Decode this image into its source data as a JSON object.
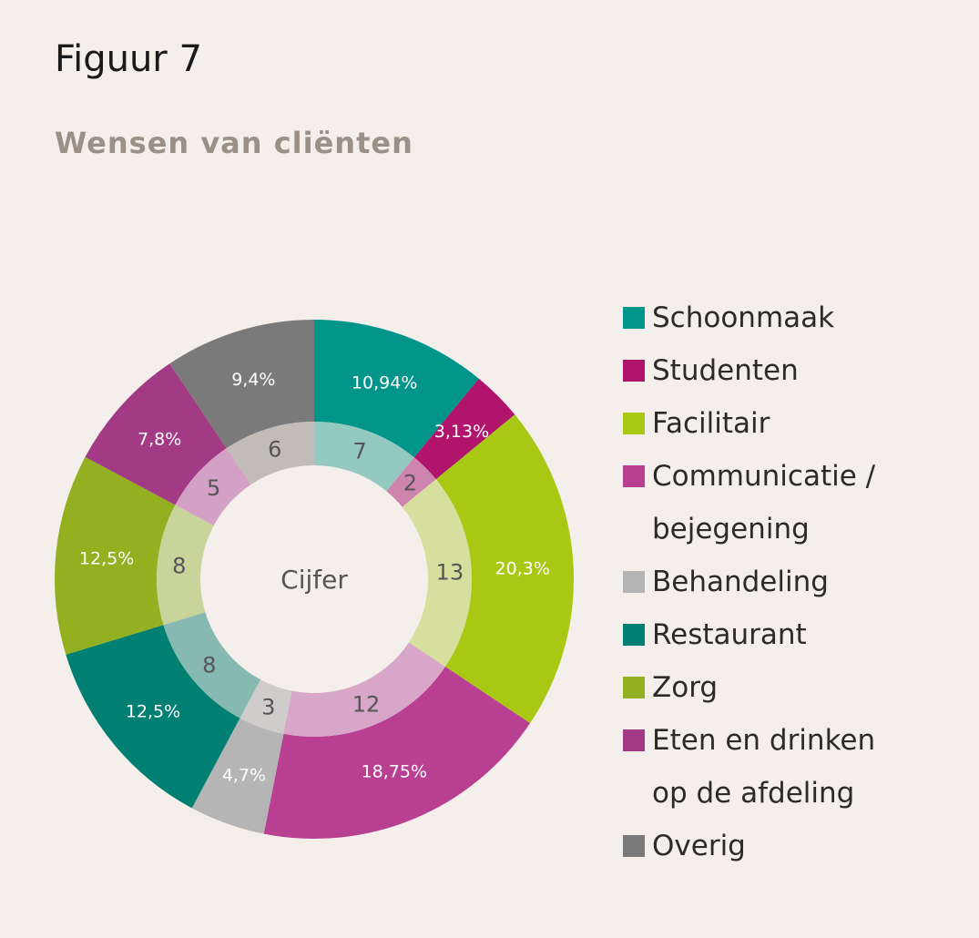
{
  "figure_label": "Figuur 7",
  "chart_data": {
    "type": "donut",
    "title": "Wensen van cliënten",
    "center_label": "Cijfer",
    "legend_position": "right",
    "categories": [
      "Schoonmaak",
      "Studenten",
      "Facilitair",
      "Communicatie / bejegening",
      "Behandeling",
      "Restaurant",
      "Zorg",
      "Eten en drinken op de afdeling",
      "Overig"
    ],
    "legend_text": [
      "Schoonmaak",
      "Studenten",
      "Facilitair",
      "Communicatie /\nbejegening",
      "Behandeling",
      "Restaurant",
      "Zorg",
      "Eten en drinken\nop de afdeling",
      "Overig"
    ],
    "series": [
      {
        "ring": "outer",
        "values": [
          10.94,
          3.13,
          20.3,
          18.75,
          4.7,
          12.5,
          12.5,
          7.8,
          9.4
        ],
        "labels": [
          "10,94%",
          "3,13%",
          "20,3%",
          "18,75%",
          "4,7%",
          "12,5%",
          "12,5%",
          "7,8%",
          "9,4%"
        ]
      },
      {
        "ring": "inner",
        "values": [
          7,
          2,
          13,
          12,
          3,
          8,
          8,
          5,
          6
        ],
        "labels": [
          "7",
          "2",
          "13",
          "12",
          "3",
          "8",
          "8",
          "5",
          "6"
        ]
      }
    ],
    "colors": [
      "#00958a",
      "#b0146b",
      "#a8c813",
      "#b83f92",
      "#b5b5b5",
      "#007f73",
      "#93b021",
      "#a33a86",
      "#7a7a7a"
    ],
    "inner_colors": [
      "#94c9bf",
      "#cf84ad",
      "#d6df9e",
      "#d8a6c8",
      "#cfcccb",
      "#86b9b1",
      "#c9d49a",
      "#d4a1c6",
      "#c1bcb8"
    ]
  }
}
